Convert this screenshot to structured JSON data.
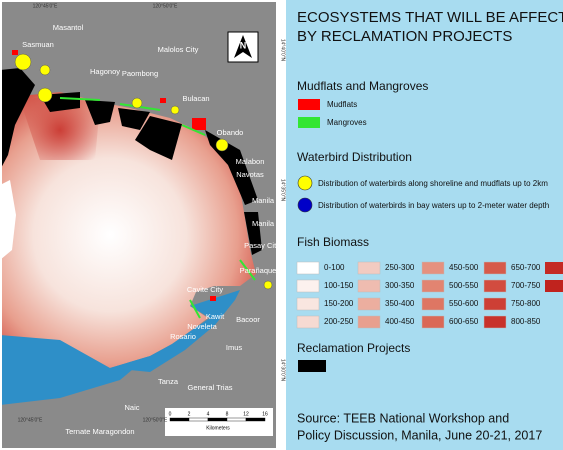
{
  "map": {
    "places": [
      "Masantol",
      "Sasmuan",
      "Hagonoy",
      "Paombong",
      "Malolos City",
      "Bulacan",
      "Obando",
      "Malabon",
      "Navotas",
      "Manila",
      "Manila",
      "Pasay City",
      "Parañaque",
      "Cavite City",
      "Kawit",
      "Noveleta",
      "Bacoor",
      "Rosario",
      "Imus",
      "Tanza",
      "General Trias",
      "Naic",
      "Ternate Maragondon"
    ],
    "coords_top": [
      "120°45'0\"E",
      "120°50'0\"E"
    ],
    "coords_bottom": [
      "120°45'0\"E",
      "120°50'0\"E"
    ],
    "coords_right": [
      "14°40'0\"N",
      "14°35'0\"N",
      "14°30'0\"N"
    ],
    "scale": {
      "label": "Kilometers",
      "ticks": [
        "0",
        "2",
        "4",
        "8",
        "12",
        "16"
      ]
    },
    "north": "N"
  },
  "legend": {
    "title": [
      "ECOSYSTEMS THAT WILL BE AFFECTED",
      "BY RECLAMATION PROJECTS"
    ],
    "mudflats_heading": "Mudflats and Mangroves",
    "mudflats": {
      "label": "Mudflats",
      "color": "#ff0000"
    },
    "mangroves": {
      "label": "Mangroves",
      "color": "#33e633"
    },
    "waterbird_heading": "Waterbird Distribution",
    "waterbird_shore": {
      "label": "Distribution of waterbirds along shoreline and mudflats up to 2km",
      "color": "#ffff00"
    },
    "waterbird_bay": {
      "label": "Distribution of waterbirds in bay waters up to 2-meter water depth",
      "color": "#0000c8"
    },
    "fish_heading": "Fish Biomass",
    "fish_bins": [
      {
        "label": "0-100",
        "color": "#ffffff"
      },
      {
        "label": "100-150",
        "color": "#fcf1ee"
      },
      {
        "label": "150-200",
        "color": "#f9e6e0"
      },
      {
        "label": "200-250",
        "color": "#f6dad2"
      },
      {
        "label": "250-300",
        "color": "#f2cbc1"
      },
      {
        "label": "300-350",
        "color": "#efbcb0"
      },
      {
        "label": "350-400",
        "color": "#ecae9f"
      },
      {
        "label": "400-450",
        "color": "#e89f8e"
      },
      {
        "label": "450-500",
        "color": "#e5917f"
      },
      {
        "label": "500-550",
        "color": "#e28471"
      },
      {
        "label": "550-600",
        "color": "#de7663"
      },
      {
        "label": "600-650",
        "color": "#da6856"
      },
      {
        "label": "650-700",
        "color": "#d65a4a"
      },
      {
        "label": "700-750",
        "color": "#d24c3f"
      },
      {
        "label": "750-800",
        "color": "#cd3f35"
      },
      {
        "label": "800-850",
        "color": "#c8322b"
      }
    ],
    "reclamation_heading": "Reclamation Projects",
    "source": [
      "Source: TEEB National Workshop and",
      "Policy Discussion, Manila, June 20-21, 2017"
    ]
  }
}
